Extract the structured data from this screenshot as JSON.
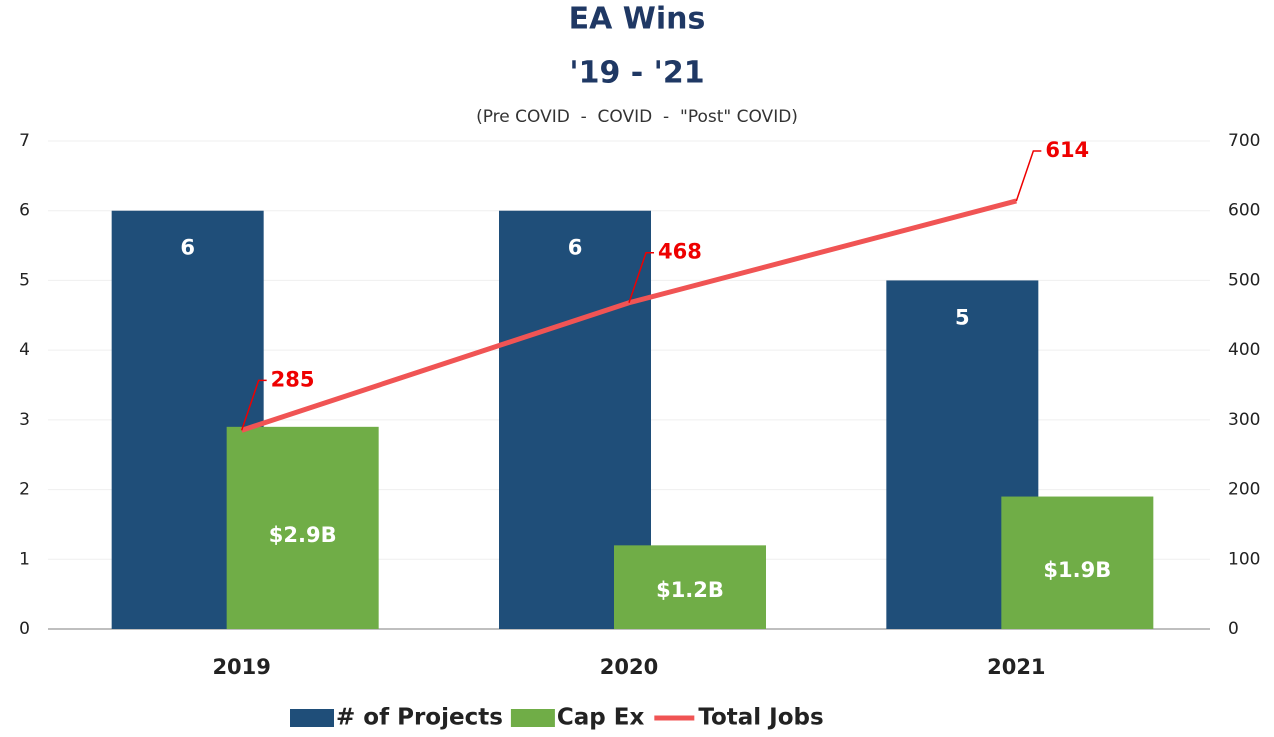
{
  "chart_data": {
    "type": "bar",
    "title": [
      "EA Wins",
      "'19 - '21"
    ],
    "subtitle": "(Pre COVID  -  COVID  -  \"Post\" COVID)",
    "categories": [
      "2019",
      "2020",
      "2021"
    ],
    "series": [
      {
        "name": "# of Projects",
        "color": "#1f4e79",
        "type": "bar",
        "values": [
          6,
          6,
          5
        ]
      },
      {
        "name": "Cap Ex",
        "color": "#70ad47",
        "type": "bar",
        "values": [
          2.9,
          1.2,
          1.9
        ],
        "value_labels": [
          "$2.9B",
          "$1.2B",
          "$1.9B"
        ]
      },
      {
        "name": "Total Jobs",
        "color": "#f05454",
        "type": "line",
        "axis": "y2",
        "values": [
          285,
          468,
          614
        ]
      }
    ],
    "ylim": [
      0,
      7
    ],
    "yticks": [
      0,
      1,
      2,
      3,
      4,
      5,
      6,
      7
    ],
    "y2lim": [
      0,
      700
    ],
    "y2ticks": [
      0,
      100,
      200,
      300,
      400,
      500,
      600,
      700
    ],
    "grid": true,
    "legend": "bottom"
  }
}
